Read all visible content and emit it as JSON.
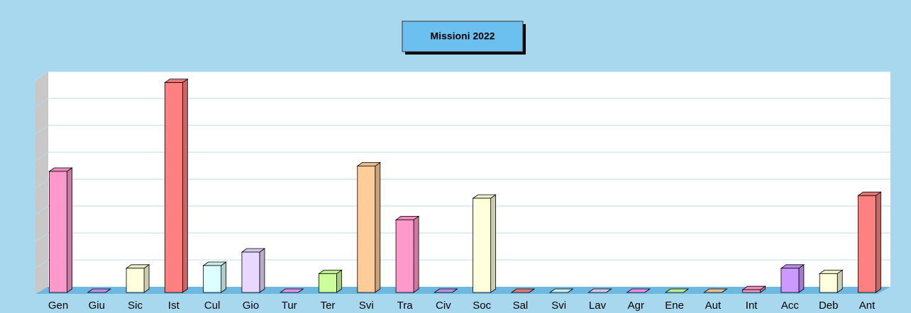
{
  "chart_data": {
    "type": "bar3d",
    "title": "Missioni 2022",
    "categories": [
      "Gen",
      "Giu",
      "Sic",
      "Ist",
      "Cul",
      "Gio",
      "Tur",
      "Ter",
      "Svi",
      "Tra",
      "Civ",
      "Soc",
      "Sal",
      "Svi",
      "Lav",
      "Agr",
      "Ene",
      "Aut",
      "Int",
      "Acc",
      "Deb",
      "Ant"
    ],
    "values": [
      4.5,
      0,
      0.9,
      7.8,
      1.0,
      1.5,
      0,
      0.7,
      4.7,
      2.7,
      0,
      3.5,
      0,
      0,
      0,
      0,
      0,
      0,
      0.1,
      0.9,
      0.7,
      3.6
    ],
    "colors": [
      "#ff99cc",
      "#cc99ff",
      "#ffffdd",
      "#ff8080",
      "#ddffff",
      "#e8d8ff",
      "#ff99ff",
      "#ccff99",
      "#ffcc99",
      "#ff99cc",
      "#cc99ff",
      "#ffffdd",
      "#ff8080",
      "#ddffff",
      "#e8d8ff",
      "#ff99ff",
      "#ccff99",
      "#ffcc99",
      "#ff99cc",
      "#cc99ff",
      "#ffffdd",
      "#ff8080"
    ],
    "ylim": [
      0,
      8
    ],
    "yticks": [
      0,
      1,
      2,
      3,
      4,
      5,
      6,
      7,
      8
    ],
    "grid": true
  }
}
